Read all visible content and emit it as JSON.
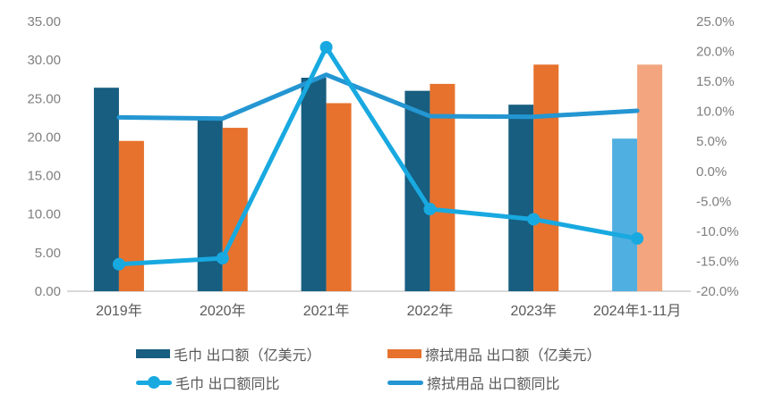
{
  "chart_data": {
    "type": "bar",
    "subtype": "combo-bar-line-dual-axis",
    "title": "",
    "categories": [
      "2019年",
      "2020年",
      "2021年",
      "2022年",
      "2023年",
      "2024年1-11月"
    ],
    "series": [
      {
        "name": "毛巾 出口额（亿美元）",
        "type": "bar",
        "axis": "left",
        "values": [
          26.4,
          22.3,
          27.7,
          26.0,
          24.2,
          19.8
        ],
        "point_colors": [
          "#175E80",
          "#175E80",
          "#175E80",
          "#175E80",
          "#175E80",
          "#4FAFE0"
        ]
      },
      {
        "name": "擦拭用品 出口额（亿美元）",
        "type": "bar",
        "axis": "left",
        "values": [
          19.5,
          21.2,
          24.4,
          26.9,
          29.4,
          29.4
        ],
        "point_colors": [
          "#E7722D",
          "#E7722D",
          "#E7722D",
          "#E7722D",
          "#E7722D",
          "#F2A57E"
        ]
      },
      {
        "name": "毛巾 出口额同比",
        "type": "line",
        "axis": "right",
        "marker": true,
        "values_pct": [
          -15.5,
          -14.5,
          20.7,
          -6.3,
          -8.0,
          -11.2
        ],
        "color": "#18A9E0"
      },
      {
        "name": "擦拭用品 出口额同比",
        "type": "line",
        "axis": "right",
        "marker": false,
        "values_pct": [
          9.0,
          8.8,
          16.1,
          9.2,
          9.1,
          10.1
        ],
        "color": "#2496D2"
      }
    ],
    "left_axis": {
      "min": 0,
      "max": 35,
      "step": 5,
      "tick_labels": [
        "0.00",
        "5.00",
        "10.00",
        "15.00",
        "20.00",
        "25.00",
        "30.00",
        "35.00"
      ]
    },
    "right_axis": {
      "min": -20,
      "max": 25,
      "step": 5,
      "tick_labels": [
        "-20.0%",
        "-15.0%",
        "-10.0%",
        "-5.0%",
        "0.0%",
        "5.0%",
        "10.0%",
        "15.0%",
        "20.0%",
        "25.0%"
      ]
    },
    "grid": false,
    "legend_position": "bottom"
  },
  "legend": {
    "items": [
      {
        "label": "毛巾 出口额（亿美元）",
        "swatch": "bar",
        "color": "#175E80"
      },
      {
        "label": "擦拭用品 出口额（亿美元）",
        "swatch": "bar",
        "color": "#E7722D"
      },
      {
        "label": "毛巾 出口额同比",
        "swatch": "line-marker",
        "color": "#18A9E0"
      },
      {
        "label": "擦拭用品 出口额同比",
        "swatch": "line",
        "color": "#2496D2"
      }
    ]
  },
  "colors": {
    "towel_bar": "#175E80",
    "wipe_bar": "#E7722D",
    "towel_bar_partial": "#4FAFE0",
    "wipe_bar_partial": "#F2A57E",
    "towel_line": "#18A9E0",
    "wipe_line": "#2496D2",
    "y_tick_text": "#7F7F7F",
    "x_tick_text": "#595959",
    "axis_line": "#D9D9D9",
    "background": "#FFFFFF"
  }
}
